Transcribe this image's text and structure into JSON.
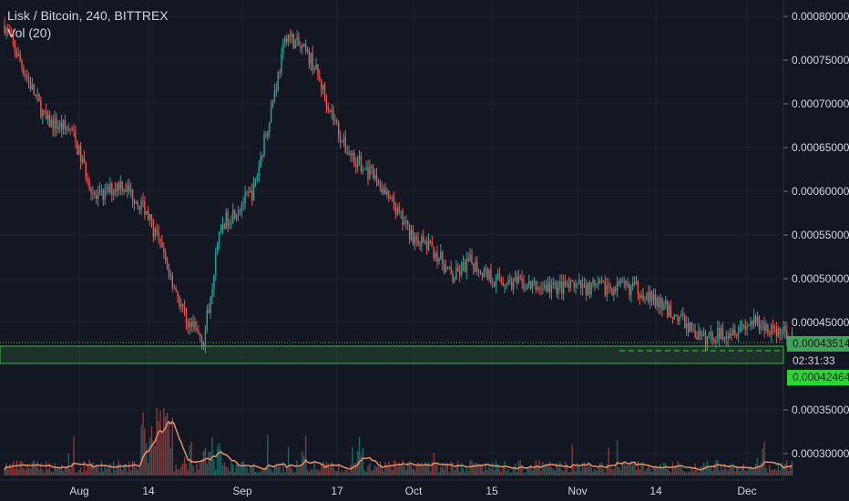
{
  "chart_data": {
    "type": "candlestick",
    "title": "Lisk / Bitcoin, 240, BITTREX",
    "indicator_label": "Vol (20)",
    "interval": "240",
    "exchange": "BITTREX",
    "y_axis": {
      "ticks": [
        "0.00080000",
        "0.00075000",
        "0.00070000",
        "0.00065000",
        "0.00060000",
        "0.00055000",
        "0.00050000",
        "0.00045000",
        "0.00035000",
        "0.00030000"
      ],
      "range": [
        0.000295,
        0.000815
      ]
    },
    "x_axis": {
      "ticks": [
        "Aug",
        "14",
        "Sep",
        "17",
        "Oct",
        "15",
        "Nov",
        "14",
        "Dec"
      ]
    },
    "price_markers": {
      "last_price": "0.00043514",
      "countdown": "02:31:33",
      "level": "0.00042464"
    },
    "approx_close_path": [
      [
        "Jul 23",
        0.00079
      ],
      [
        "Jul 28",
        0.00068
      ],
      [
        "Jul 31",
        0.00067
      ],
      [
        "Aug 3",
        0.00059
      ],
      [
        "Aug 6",
        0.00061
      ],
      [
        "Aug 9",
        0.00058
      ],
      [
        "Aug 11",
        0.00053
      ],
      [
        "Aug 14",
        0.00045
      ],
      [
        "Aug 16",
        0.00043
      ],
      [
        "Aug 18",
        0.00056
      ],
      [
        "Aug 22",
        0.0006
      ],
      [
        "Aug 26",
        0.00078
      ],
      [
        "Aug 29",
        0.00075
      ],
      [
        "Sep 2",
        0.00065
      ],
      [
        "Sep 6",
        0.00061
      ],
      [
        "Sep 10",
        0.00055
      ],
      [
        "Sep 13",
        0.00053
      ],
      [
        "Sep 15",
        0.0005
      ],
      [
        "Sep 17",
        0.00052
      ],
      [
        "Sep 20",
        0.0005
      ],
      [
        "Sep 25",
        0.00049
      ],
      [
        "Oct 1",
        0.00049
      ],
      [
        "Oct 7",
        0.00049
      ],
      [
        "Oct 10",
        0.00047
      ],
      [
        "Oct 13",
        0.00045
      ],
      [
        "Oct 15",
        0.00043
      ],
      [
        "Oct 18",
        0.00044
      ],
      [
        "Oct 21",
        0.00045
      ],
      [
        "Oct 24",
        0.00044
      ],
      [
        "Oct 26",
        0.000435
      ]
    ],
    "volume_ma_visible": true,
    "grid": true,
    "colors": {
      "up": "#26a69a",
      "down": "#ef5350",
      "vol_ma": "#e88f63",
      "support_band": "#4caf50",
      "level_tag": "#2bd535",
      "background": "#131722"
    }
  }
}
